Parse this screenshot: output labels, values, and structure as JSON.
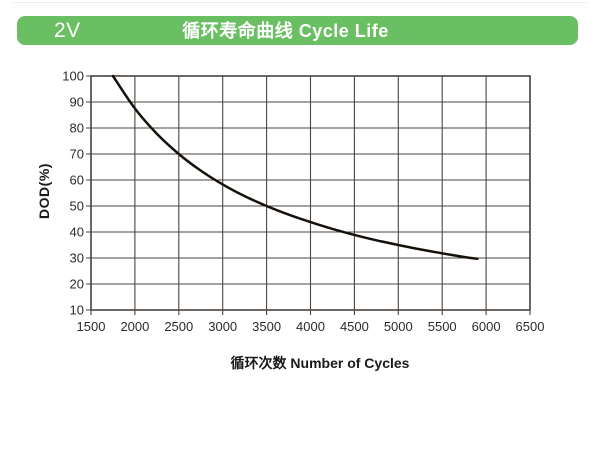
{
  "header": {
    "badge": "2V",
    "title": "循环寿命曲线 Cycle Life"
  },
  "colors": {
    "header_bg": "#6abf62",
    "header_text": "#ffffff",
    "grid": "#4a443e",
    "curve": "#17110c",
    "tick_text": "#2b2b2b",
    "axis_label": "#1a1a1a"
  },
  "chart_data": {
    "type": "line",
    "title": "循环寿命曲线 Cycle Life",
    "xlabel": "循环次数 Number of Cycles",
    "ylabel": "DOD(%)",
    "xlim": [
      1500,
      6500
    ],
    "ylim": [
      10,
      100
    ],
    "x_ticks": [
      1500,
      2000,
      2500,
      3000,
      3500,
      4000,
      4500,
      5000,
      5500,
      6000,
      6500
    ],
    "y_ticks": [
      10,
      20,
      30,
      40,
      50,
      60,
      70,
      80,
      90,
      100
    ],
    "grid": true,
    "legend": "none",
    "series": [
      {
        "name": "cycle-life",
        "x": [
          1750,
          2000,
          2250,
          2500,
          2750,
          3000,
          3250,
          3500,
          3750,
          4000,
          4250,
          4500,
          4750,
          5000,
          5250,
          5500,
          5750,
          5900
        ],
        "y": [
          100,
          87.5,
          77.8,
          70,
          63.6,
          58.3,
          53.8,
          50,
          46.7,
          43.8,
          41.2,
          38.9,
          36.8,
          35,
          33.3,
          31.8,
          30.4,
          29.7
        ]
      }
    ]
  }
}
